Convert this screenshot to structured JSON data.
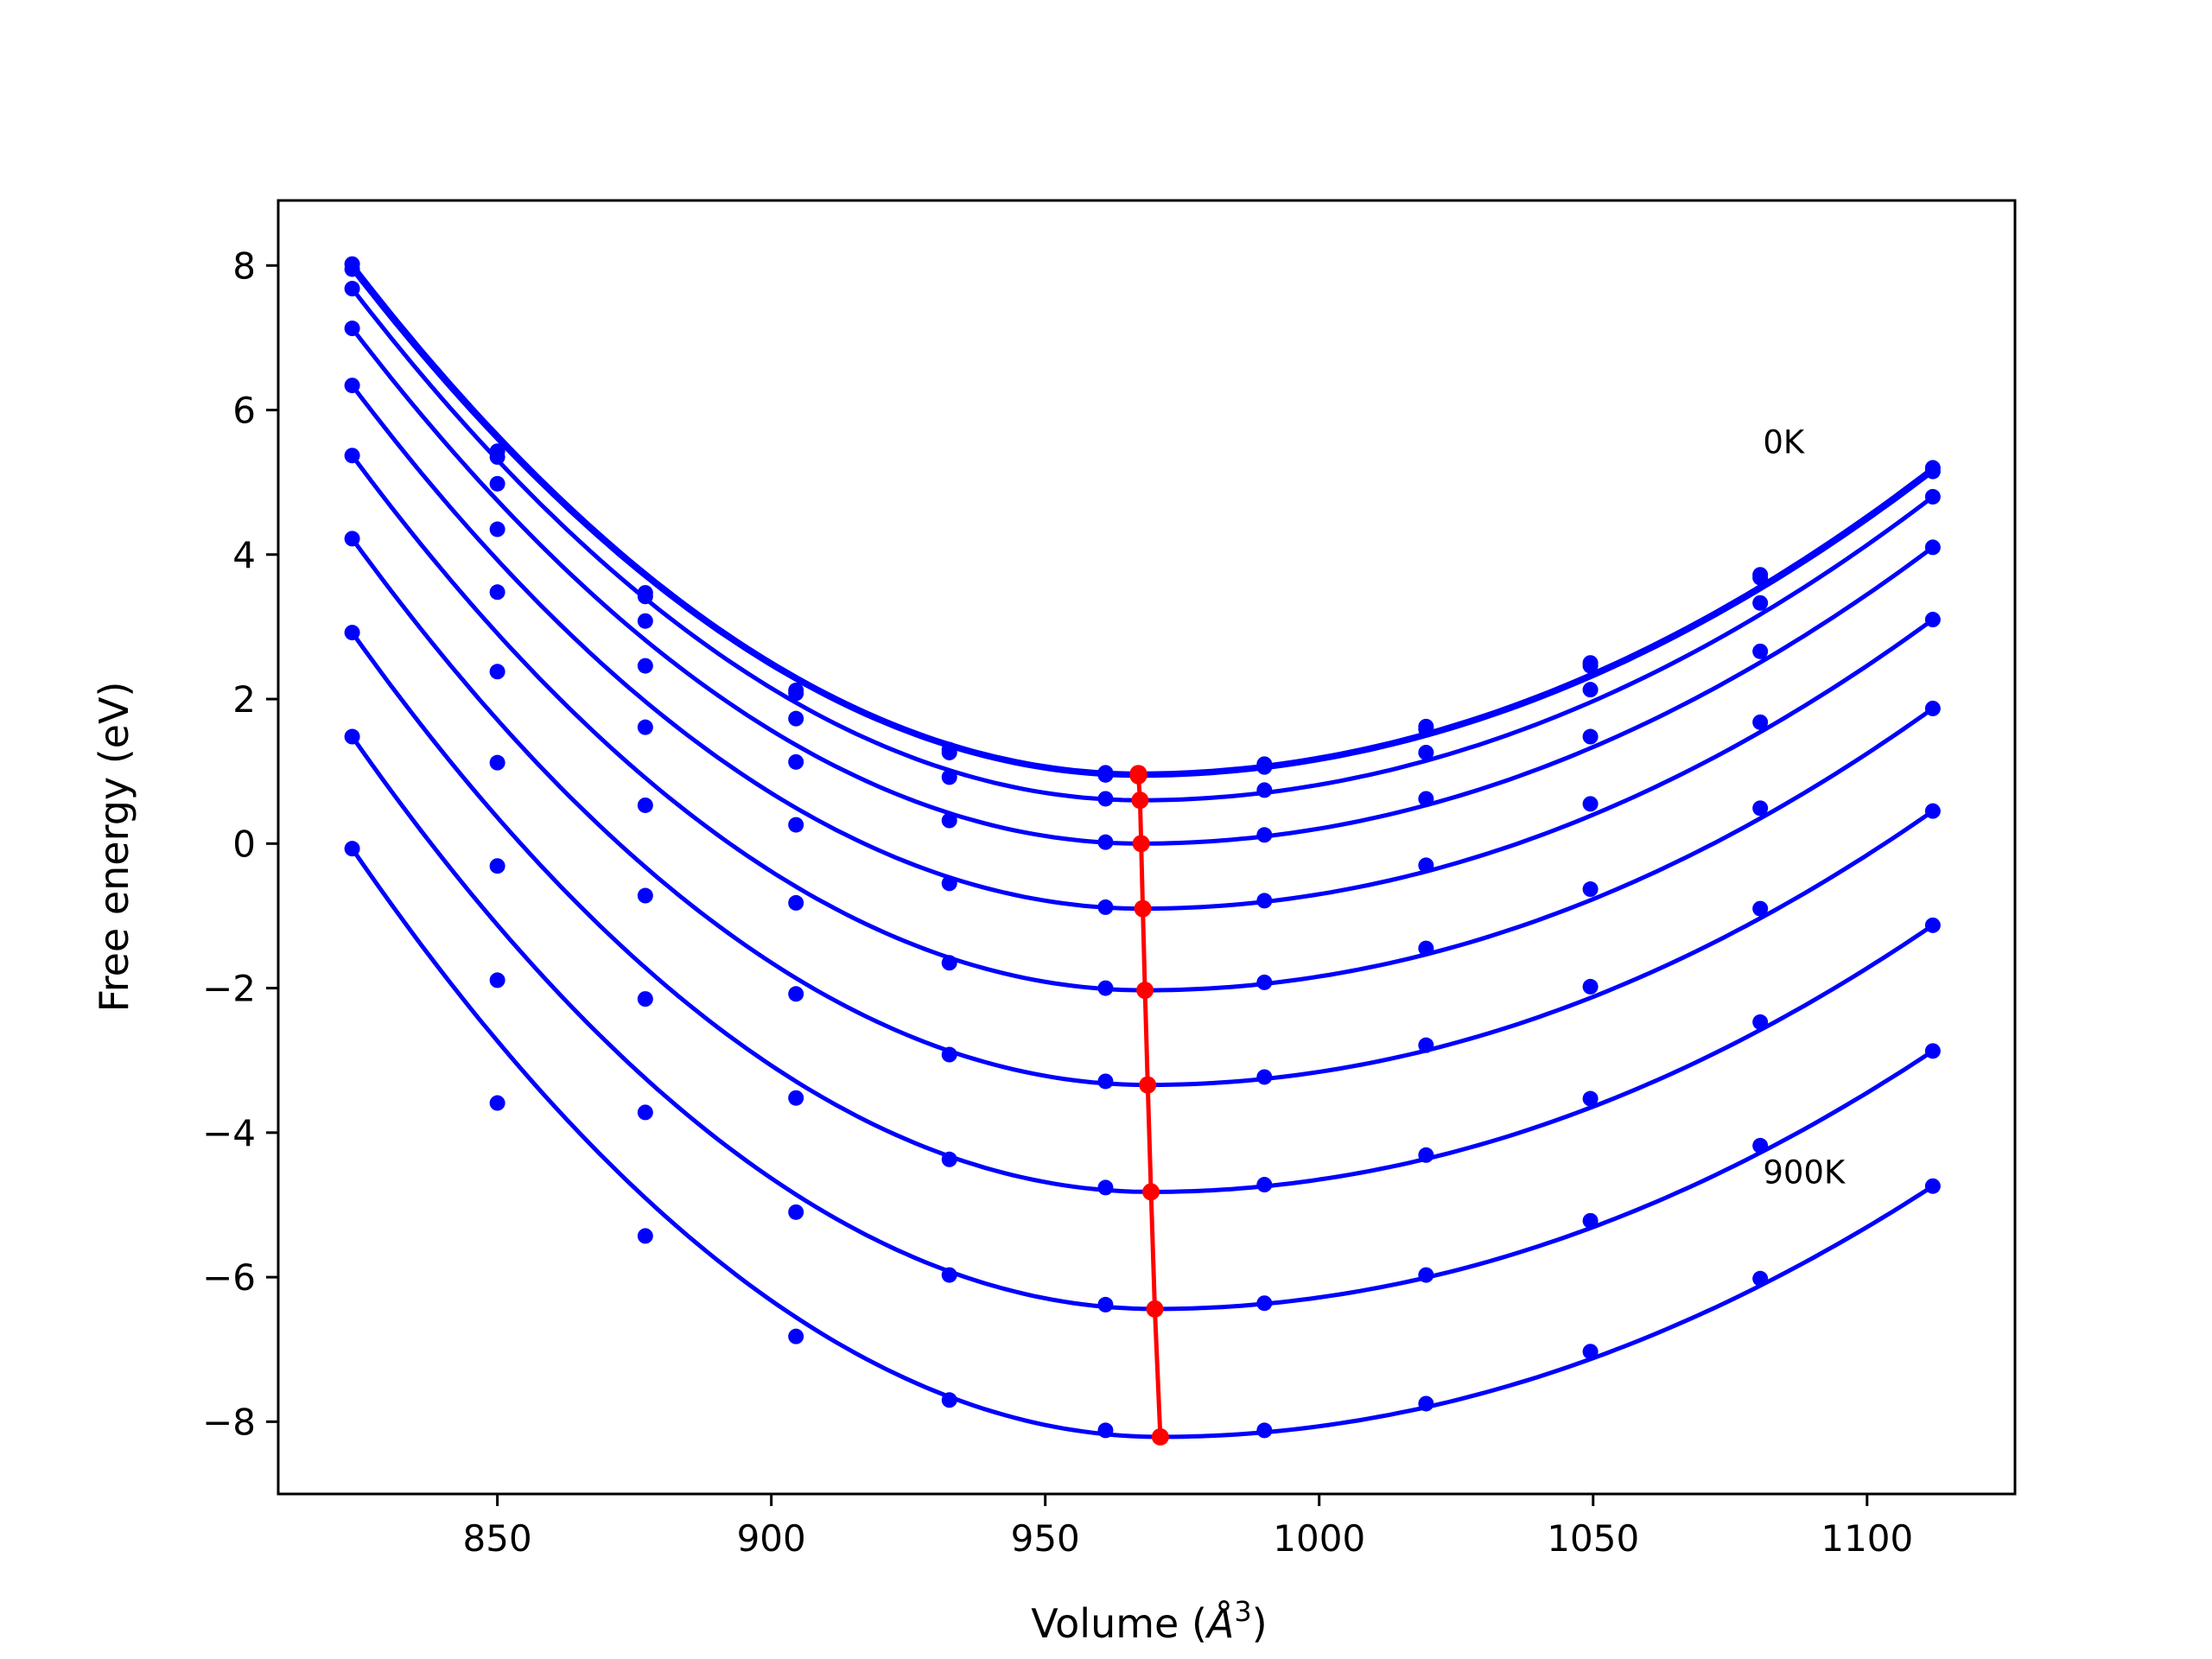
{
  "chart_data": {
    "type": "line",
    "title": "",
    "xlabel": "Volume",
    "xlabel_unit": "Å",
    "xlabel_unit_exp": "3",
    "ylabel": "Free energy (eV)",
    "xlim": [
      810,
      1127
    ],
    "ylim": [
      -9,
      8.9
    ],
    "xticks": [
      850,
      900,
      950,
      1000,
      1050,
      1100
    ],
    "yticks": [
      8,
      6,
      4,
      2,
      0,
      -2,
      -4,
      -6,
      -8
    ],
    "ytick_labels": [
      "8",
      "6",
      "4",
      "2",
      "0",
      "−2",
      "−4",
      "−6",
      "−8"
    ],
    "grid": false,
    "legend": "none",
    "colors": {
      "curves": "#0000ff",
      "minimum_path": "#ff0000"
    },
    "annotations": [
      {
        "text": "0K",
        "x": 1081,
        "y": 5.4
      },
      {
        "text": "900K",
        "x": 1081,
        "y": -4.7
      }
    ],
    "x": [
      823.5,
      850.0,
      877.0,
      904.5,
      932.5,
      961.0,
      990.0,
      1019.5,
      1049.5,
      1080.5,
      1112.0
    ],
    "series": [
      {
        "values": [
          8.02,
          5.43,
          3.47,
          2.12,
          1.3,
          0.98,
          1.1,
          1.62,
          2.5,
          3.72,
          5.2
        ],
        "min": [
          967.0,
          0.97
        ]
      },
      {
        "values": [
          7.95,
          5.35,
          3.42,
          2.08,
          1.26,
          0.95,
          1.06,
          1.58,
          2.46,
          3.68,
          5.15
        ],
        "min": [
          967.0,
          0.94
        ]
      },
      {
        "values": [
          7.68,
          4.98,
          3.08,
          1.73,
          0.92,
          0.62,
          0.74,
          1.26,
          2.13,
          3.33,
          4.8
        ],
        "min": [
          967.3,
          0.6
        ]
      },
      {
        "values": [
          7.13,
          4.35,
          2.46,
          1.13,
          0.32,
          0.02,
          0.12,
          0.62,
          1.48,
          2.66,
          4.1
        ],
        "min": [
          967.5,
          0.0
        ]
      },
      {
        "values": [
          6.34,
          3.48,
          1.61,
          0.26,
          -0.55,
          -0.88,
          -0.79,
          -0.3,
          0.55,
          1.68,
          3.1
        ],
        "min": [
          967.8,
          -0.9
        ]
      },
      {
        "values": [
          5.37,
          2.38,
          0.53,
          -0.82,
          -1.65,
          -2.0,
          -1.92,
          -1.45,
          -0.63,
          0.49,
          1.87
        ],
        "min": [
          968.2,
          -2.03
        ]
      },
      {
        "values": [
          4.22,
          1.12,
          -0.72,
          -2.08,
          -2.92,
          -3.29,
          -3.23,
          -2.79,
          -1.98,
          -0.9,
          0.45
        ],
        "min": [
          968.7,
          -3.34
        ]
      },
      {
        "values": [
          2.92,
          -0.31,
          -2.15,
          -3.52,
          -4.37,
          -4.76,
          -4.72,
          -4.31,
          -3.53,
          -2.47,
          -1.13
        ],
        "min": [
          969.3,
          -4.82
        ]
      },
      {
        "values": [
          1.48,
          -1.89,
          -3.72,
          -5.1,
          -5.97,
          -6.38,
          -6.36,
          -5.97,
          -5.22,
          -4.18,
          -2.87
        ],
        "min": [
          970.0,
          -6.44
        ]
      },
      {
        "values": [
          -0.07,
          -3.59,
          -5.43,
          -6.82,
          -7.7,
          -8.12,
          -8.12,
          -7.75,
          -7.03,
          -6.02,
          -4.74
        ],
        "min": [
          971.0,
          -8.21
        ]
      }
    ]
  }
}
